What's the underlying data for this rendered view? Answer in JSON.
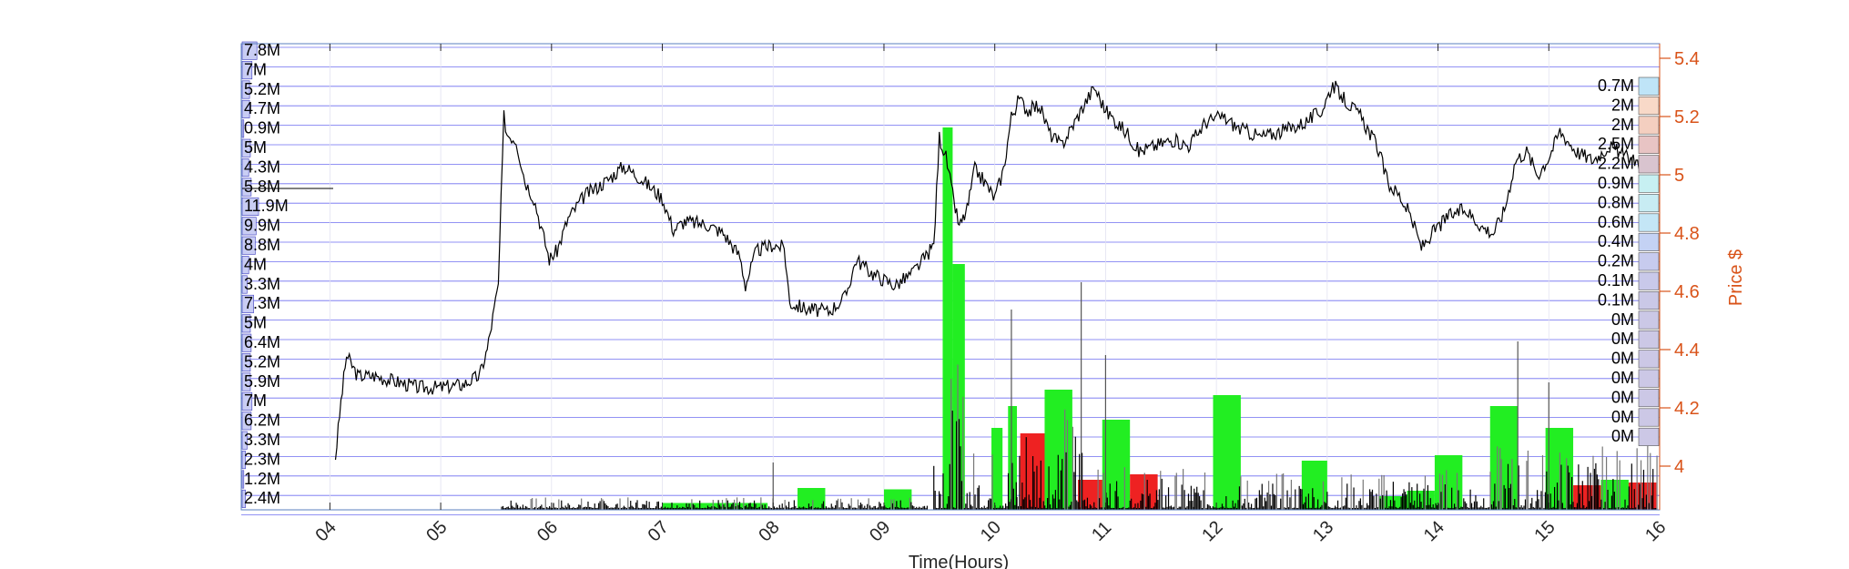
{
  "chart_data": {
    "type": "line",
    "title": "",
    "xlabel": "Time(Hours)",
    "ylabel_right": "Price $",
    "x_ticks": [
      "04",
      "05",
      "06",
      "07",
      "08",
      "09",
      "10",
      "11",
      "12",
      "13",
      "14",
      "15",
      "16"
    ],
    "xlim": [
      3.2,
      16.0
    ],
    "y_right_ticks": [
      "4",
      "4.2",
      "4.4",
      "4.6",
      "4.8",
      "5",
      "5.2",
      "5.4"
    ],
    "ylim_price": [
      3.85,
      5.45
    ],
    "grid": "horizontal-blue",
    "price_series": [
      {
        "x": 4.05,
        "y": 4.03
      },
      {
        "x": 4.1,
        "y": 4.22
      },
      {
        "x": 4.15,
        "y": 4.38
      },
      {
        "x": 4.25,
        "y": 4.31
      },
      {
        "x": 4.4,
        "y": 4.31
      },
      {
        "x": 4.6,
        "y": 4.29
      },
      {
        "x": 4.8,
        "y": 4.27
      },
      {
        "x": 5.0,
        "y": 4.27
      },
      {
        "x": 5.2,
        "y": 4.28
      },
      {
        "x": 5.35,
        "y": 4.31
      },
      {
        "x": 5.42,
        "y": 4.4
      },
      {
        "x": 5.52,
        "y": 4.62
      },
      {
        "x": 5.57,
        "y": 5.2
      },
      {
        "x": 5.6,
        "y": 5.14
      },
      {
        "x": 5.68,
        "y": 5.12
      },
      {
        "x": 5.76,
        "y": 4.98
      },
      {
        "x": 5.84,
        "y": 4.92
      },
      {
        "x": 5.92,
        "y": 4.8
      },
      {
        "x": 5.98,
        "y": 4.71
      },
      {
        "x": 6.05,
        "y": 4.74
      },
      {
        "x": 6.15,
        "y": 4.85
      },
      {
        "x": 6.3,
        "y": 4.93
      },
      {
        "x": 6.5,
        "y": 4.98
      },
      {
        "x": 6.65,
        "y": 5.03
      },
      {
        "x": 6.8,
        "y": 4.99
      },
      {
        "x": 7.0,
        "y": 4.92
      },
      {
        "x": 7.1,
        "y": 4.81
      },
      {
        "x": 7.2,
        "y": 4.84
      },
      {
        "x": 7.4,
        "y": 4.83
      },
      {
        "x": 7.55,
        "y": 4.8
      },
      {
        "x": 7.7,
        "y": 4.72
      },
      {
        "x": 7.75,
        "y": 4.62
      },
      {
        "x": 7.85,
        "y": 4.74
      },
      {
        "x": 8.0,
        "y": 4.76
      },
      {
        "x": 8.1,
        "y": 4.75
      },
      {
        "x": 8.15,
        "y": 4.56
      },
      {
        "x": 8.3,
        "y": 4.54
      },
      {
        "x": 8.5,
        "y": 4.53
      },
      {
        "x": 8.65,
        "y": 4.58
      },
      {
        "x": 8.75,
        "y": 4.71
      },
      {
        "x": 8.9,
        "y": 4.66
      },
      {
        "x": 9.1,
        "y": 4.62
      },
      {
        "x": 9.25,
        "y": 4.66
      },
      {
        "x": 9.38,
        "y": 4.72
      },
      {
        "x": 9.45,
        "y": 4.76
      },
      {
        "x": 9.5,
        "y": 5.13
      },
      {
        "x": 9.56,
        "y": 5.06
      },
      {
        "x": 9.62,
        "y": 4.93
      },
      {
        "x": 9.68,
        "y": 4.82
      },
      {
        "x": 9.75,
        "y": 4.88
      },
      {
        "x": 9.82,
        "y": 5.02
      },
      {
        "x": 9.9,
        "y": 4.98
      },
      {
        "x": 10.0,
        "y": 4.92
      },
      {
        "x": 10.08,
        "y": 5.02
      },
      {
        "x": 10.15,
        "y": 5.2
      },
      {
        "x": 10.22,
        "y": 5.26
      },
      {
        "x": 10.3,
        "y": 5.22
      },
      {
        "x": 10.4,
        "y": 5.24
      },
      {
        "x": 10.5,
        "y": 5.14
      },
      {
        "x": 10.6,
        "y": 5.1
      },
      {
        "x": 10.72,
        "y": 5.18
      },
      {
        "x": 10.82,
        "y": 5.25
      },
      {
        "x": 10.9,
        "y": 5.3
      },
      {
        "x": 11.0,
        "y": 5.22
      },
      {
        "x": 11.1,
        "y": 5.18
      },
      {
        "x": 11.2,
        "y": 5.14
      },
      {
        "x": 11.3,
        "y": 5.08
      },
      {
        "x": 11.45,
        "y": 5.1
      },
      {
        "x": 11.6,
        "y": 5.12
      },
      {
        "x": 11.75,
        "y": 5.1
      },
      {
        "x": 11.9,
        "y": 5.18
      },
      {
        "x": 12.05,
        "y": 5.2
      },
      {
        "x": 12.2,
        "y": 5.16
      },
      {
        "x": 12.4,
        "y": 5.13
      },
      {
        "x": 12.6,
        "y": 5.15
      },
      {
        "x": 12.8,
        "y": 5.18
      },
      {
        "x": 12.95,
        "y": 5.22
      },
      {
        "x": 13.05,
        "y": 5.31
      },
      {
        "x": 13.15,
        "y": 5.26
      },
      {
        "x": 13.3,
        "y": 5.2
      },
      {
        "x": 13.45,
        "y": 5.1
      },
      {
        "x": 13.55,
        "y": 4.97
      },
      {
        "x": 13.65,
        "y": 4.93
      },
      {
        "x": 13.75,
        "y": 4.86
      },
      {
        "x": 13.85,
        "y": 4.75
      },
      {
        "x": 13.95,
        "y": 4.8
      },
      {
        "x": 14.1,
        "y": 4.86
      },
      {
        "x": 14.25,
        "y": 4.88
      },
      {
        "x": 14.4,
        "y": 4.82
      },
      {
        "x": 14.5,
        "y": 4.8
      },
      {
        "x": 14.6,
        "y": 4.88
      },
      {
        "x": 14.7,
        "y": 5.05
      },
      {
        "x": 14.8,
        "y": 5.08
      },
      {
        "x": 14.9,
        "y": 5.0
      },
      {
        "x": 15.0,
        "y": 5.06
      },
      {
        "x": 15.1,
        "y": 5.15
      },
      {
        "x": 15.25,
        "y": 5.08
      },
      {
        "x": 15.4,
        "y": 5.05
      },
      {
        "x": 15.55,
        "y": 5.1
      },
      {
        "x": 15.7,
        "y": 5.06
      },
      {
        "x": 15.85,
        "y": 5.04
      },
      {
        "x": 15.97,
        "y": 5.02
      }
    ],
    "volume_bars": [
      {
        "x0": 7.0,
        "x1": 7.95,
        "h": 0.025,
        "color": "#22ee22"
      },
      {
        "x0": 8.22,
        "x1": 8.47,
        "h": 0.08,
        "color": "#22ee22"
      },
      {
        "x0": 9.0,
        "x1": 9.25,
        "h": 0.075,
        "color": "#22ee22"
      },
      {
        "x0": 9.53,
        "x1": 9.62,
        "h": 1.4,
        "color": "#22ee22"
      },
      {
        "x0": 9.62,
        "x1": 9.73,
        "h": 0.9,
        "color": "#22ee22"
      },
      {
        "x0": 9.97,
        "x1": 10.07,
        "h": 0.3,
        "color": "#22ee22"
      },
      {
        "x0": 10.12,
        "x1": 10.2,
        "h": 0.38,
        "color": "#22ee22"
      },
      {
        "x0": 10.23,
        "x1": 10.47,
        "h": 0.28,
        "color": "#ee2222"
      },
      {
        "x0": 10.45,
        "x1": 10.7,
        "h": 0.44,
        "color": "#22ee22"
      },
      {
        "x0": 10.75,
        "x1": 11.0,
        "h": 0.11,
        "color": "#ee2222"
      },
      {
        "x0": 10.97,
        "x1": 11.22,
        "h": 0.33,
        "color": "#22ee22"
      },
      {
        "x0": 11.22,
        "x1": 11.47,
        "h": 0.13,
        "color": "#ee2222"
      },
      {
        "x0": 11.97,
        "x1": 12.22,
        "h": 0.42,
        "color": "#22ee22"
      },
      {
        "x0": 12.77,
        "x1": 13.0,
        "h": 0.18,
        "color": "#22ee22"
      },
      {
        "x0": 13.47,
        "x1": 13.72,
        "h": 0.05,
        "color": "#22ee22"
      },
      {
        "x0": 13.72,
        "x1": 13.97,
        "h": 0.07,
        "color": "#22ee22"
      },
      {
        "x0": 13.97,
        "x1": 14.22,
        "h": 0.2,
        "color": "#22ee22"
      },
      {
        "x0": 14.47,
        "x1": 14.72,
        "h": 0.38,
        "color": "#22ee22"
      },
      {
        "x0": 14.97,
        "x1": 15.22,
        "h": 0.3,
        "color": "#22ee22"
      },
      {
        "x0": 15.22,
        "x1": 15.47,
        "h": 0.09,
        "color": "#ee2222"
      },
      {
        "x0": 15.47,
        "x1": 15.72,
        "h": 0.11,
        "color": "#22ee22"
      },
      {
        "x0": 15.72,
        "x1": 15.97,
        "h": 0.1,
        "color": "#ee2222"
      }
    ],
    "left_labels": [
      "7.8M",
      "7M",
      "5.2M",
      "4.7M",
      "0.9M",
      "5M",
      "4.3M",
      "5.8M",
      "11.9M",
      "9.9M",
      "8.8M",
      "4M",
      "3.3M",
      "7.3M",
      "5M",
      "6.4M",
      "5.2M",
      "5.9M",
      "7M",
      "6.2M",
      "3.3M",
      "2.3M",
      "1.2M",
      "2.4M"
    ],
    "left_bar_widths": [
      0.9,
      0.6,
      0.45,
      0.45,
      0.1,
      0.5,
      0.4,
      0.55,
      1.0,
      0.85,
      0.8,
      0.4,
      0.3,
      0.7,
      0.5,
      0.55,
      0.5,
      0.5,
      0.6,
      0.55,
      0.3,
      0.2,
      0.1,
      0.2
    ],
    "right_labels": [
      "0.7M",
      "2M",
      "2M",
      "2.5M",
      "2.2M",
      "0.9M",
      "0.8M",
      "0.6M",
      "0.4M",
      "0.2M",
      "0.1M",
      "0.1M",
      "0M",
      "0M",
      "0M",
      "0M",
      "0M",
      "0M",
      "0M"
    ],
    "right_box_colors": [
      "#bfe4f7",
      "#f8d9c8",
      "#f4cfc0",
      "#e8c4c4",
      "#d9c4cf",
      "#c7f0f2",
      "#c8ecf3",
      "#c4e6f6",
      "#c4d2f4",
      "#c7cbee",
      "#c9c9ea",
      "#cac8e7",
      "#cbc8e6",
      "#ccc8e6",
      "#ccc8e6",
      "#ccc8e6",
      "#ccc8e6",
      "#ccc8e6",
      "#ccc8e6"
    ],
    "colors": {
      "price_line": "#000000",
      "grid": "#6e6ef0",
      "right_axis": "#d95319",
      "up_volume": "#22ee22",
      "down_volume": "#ee2222",
      "left_bar": "#c9cdf4"
    }
  }
}
